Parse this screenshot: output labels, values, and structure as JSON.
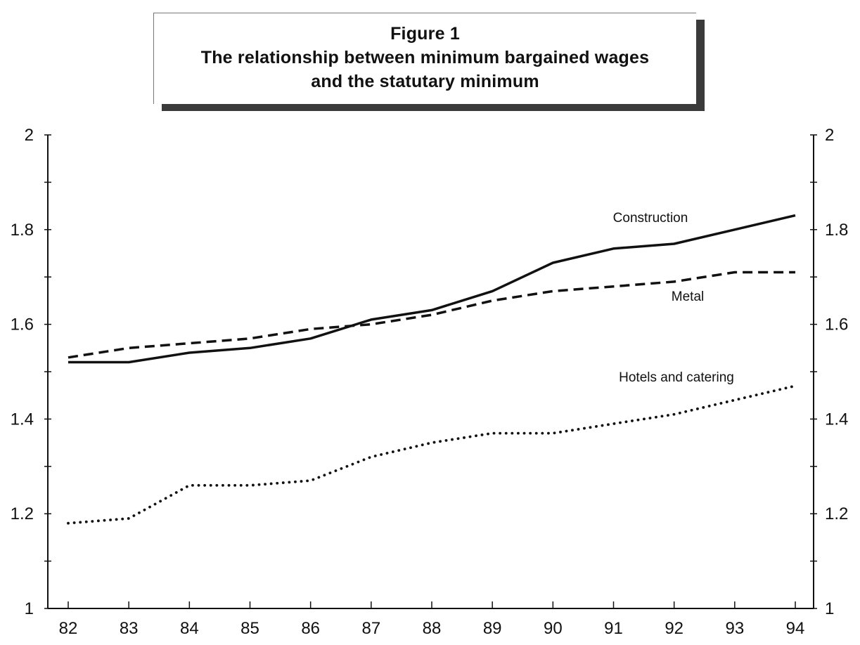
{
  "chart_data": {
    "type": "line",
    "title": "Figure 1",
    "subtitle_lines": [
      "The relationship between minimum bargained wages",
      "and the statutary minimum"
    ],
    "xlabel": "",
    "ylabel": "",
    "x": [
      "82",
      "83",
      "84",
      "85",
      "86",
      "87",
      "88",
      "89",
      "90",
      "91",
      "92",
      "93",
      "94"
    ],
    "ylim": [
      1,
      2
    ],
    "y_ticks": [
      "1",
      "1.2",
      "1.4",
      "1.6",
      "1.8",
      "2"
    ],
    "y_minor_step": 0.1,
    "grid": false,
    "legend": "inline labels next to lines",
    "series": [
      {
        "name": "Construction",
        "style": "solid",
        "color": "#111111",
        "values": [
          1.52,
          1.52,
          1.54,
          1.55,
          1.57,
          1.61,
          1.63,
          1.67,
          1.73,
          1.76,
          1.77,
          1.8,
          1.83
        ]
      },
      {
        "name": "Metal",
        "style": "dashed",
        "color": "#111111",
        "values": [
          1.53,
          1.55,
          1.56,
          1.57,
          1.59,
          1.6,
          1.62,
          1.65,
          1.67,
          1.68,
          1.69,
          1.71,
          1.71
        ]
      },
      {
        "name": "Hotels and catering",
        "style": "dotted",
        "color": "#111111",
        "values": [
          1.18,
          1.19,
          1.26,
          1.26,
          1.27,
          1.32,
          1.35,
          1.37,
          1.37,
          1.39,
          1.41,
          1.44,
          1.47
        ]
      }
    ]
  }
}
